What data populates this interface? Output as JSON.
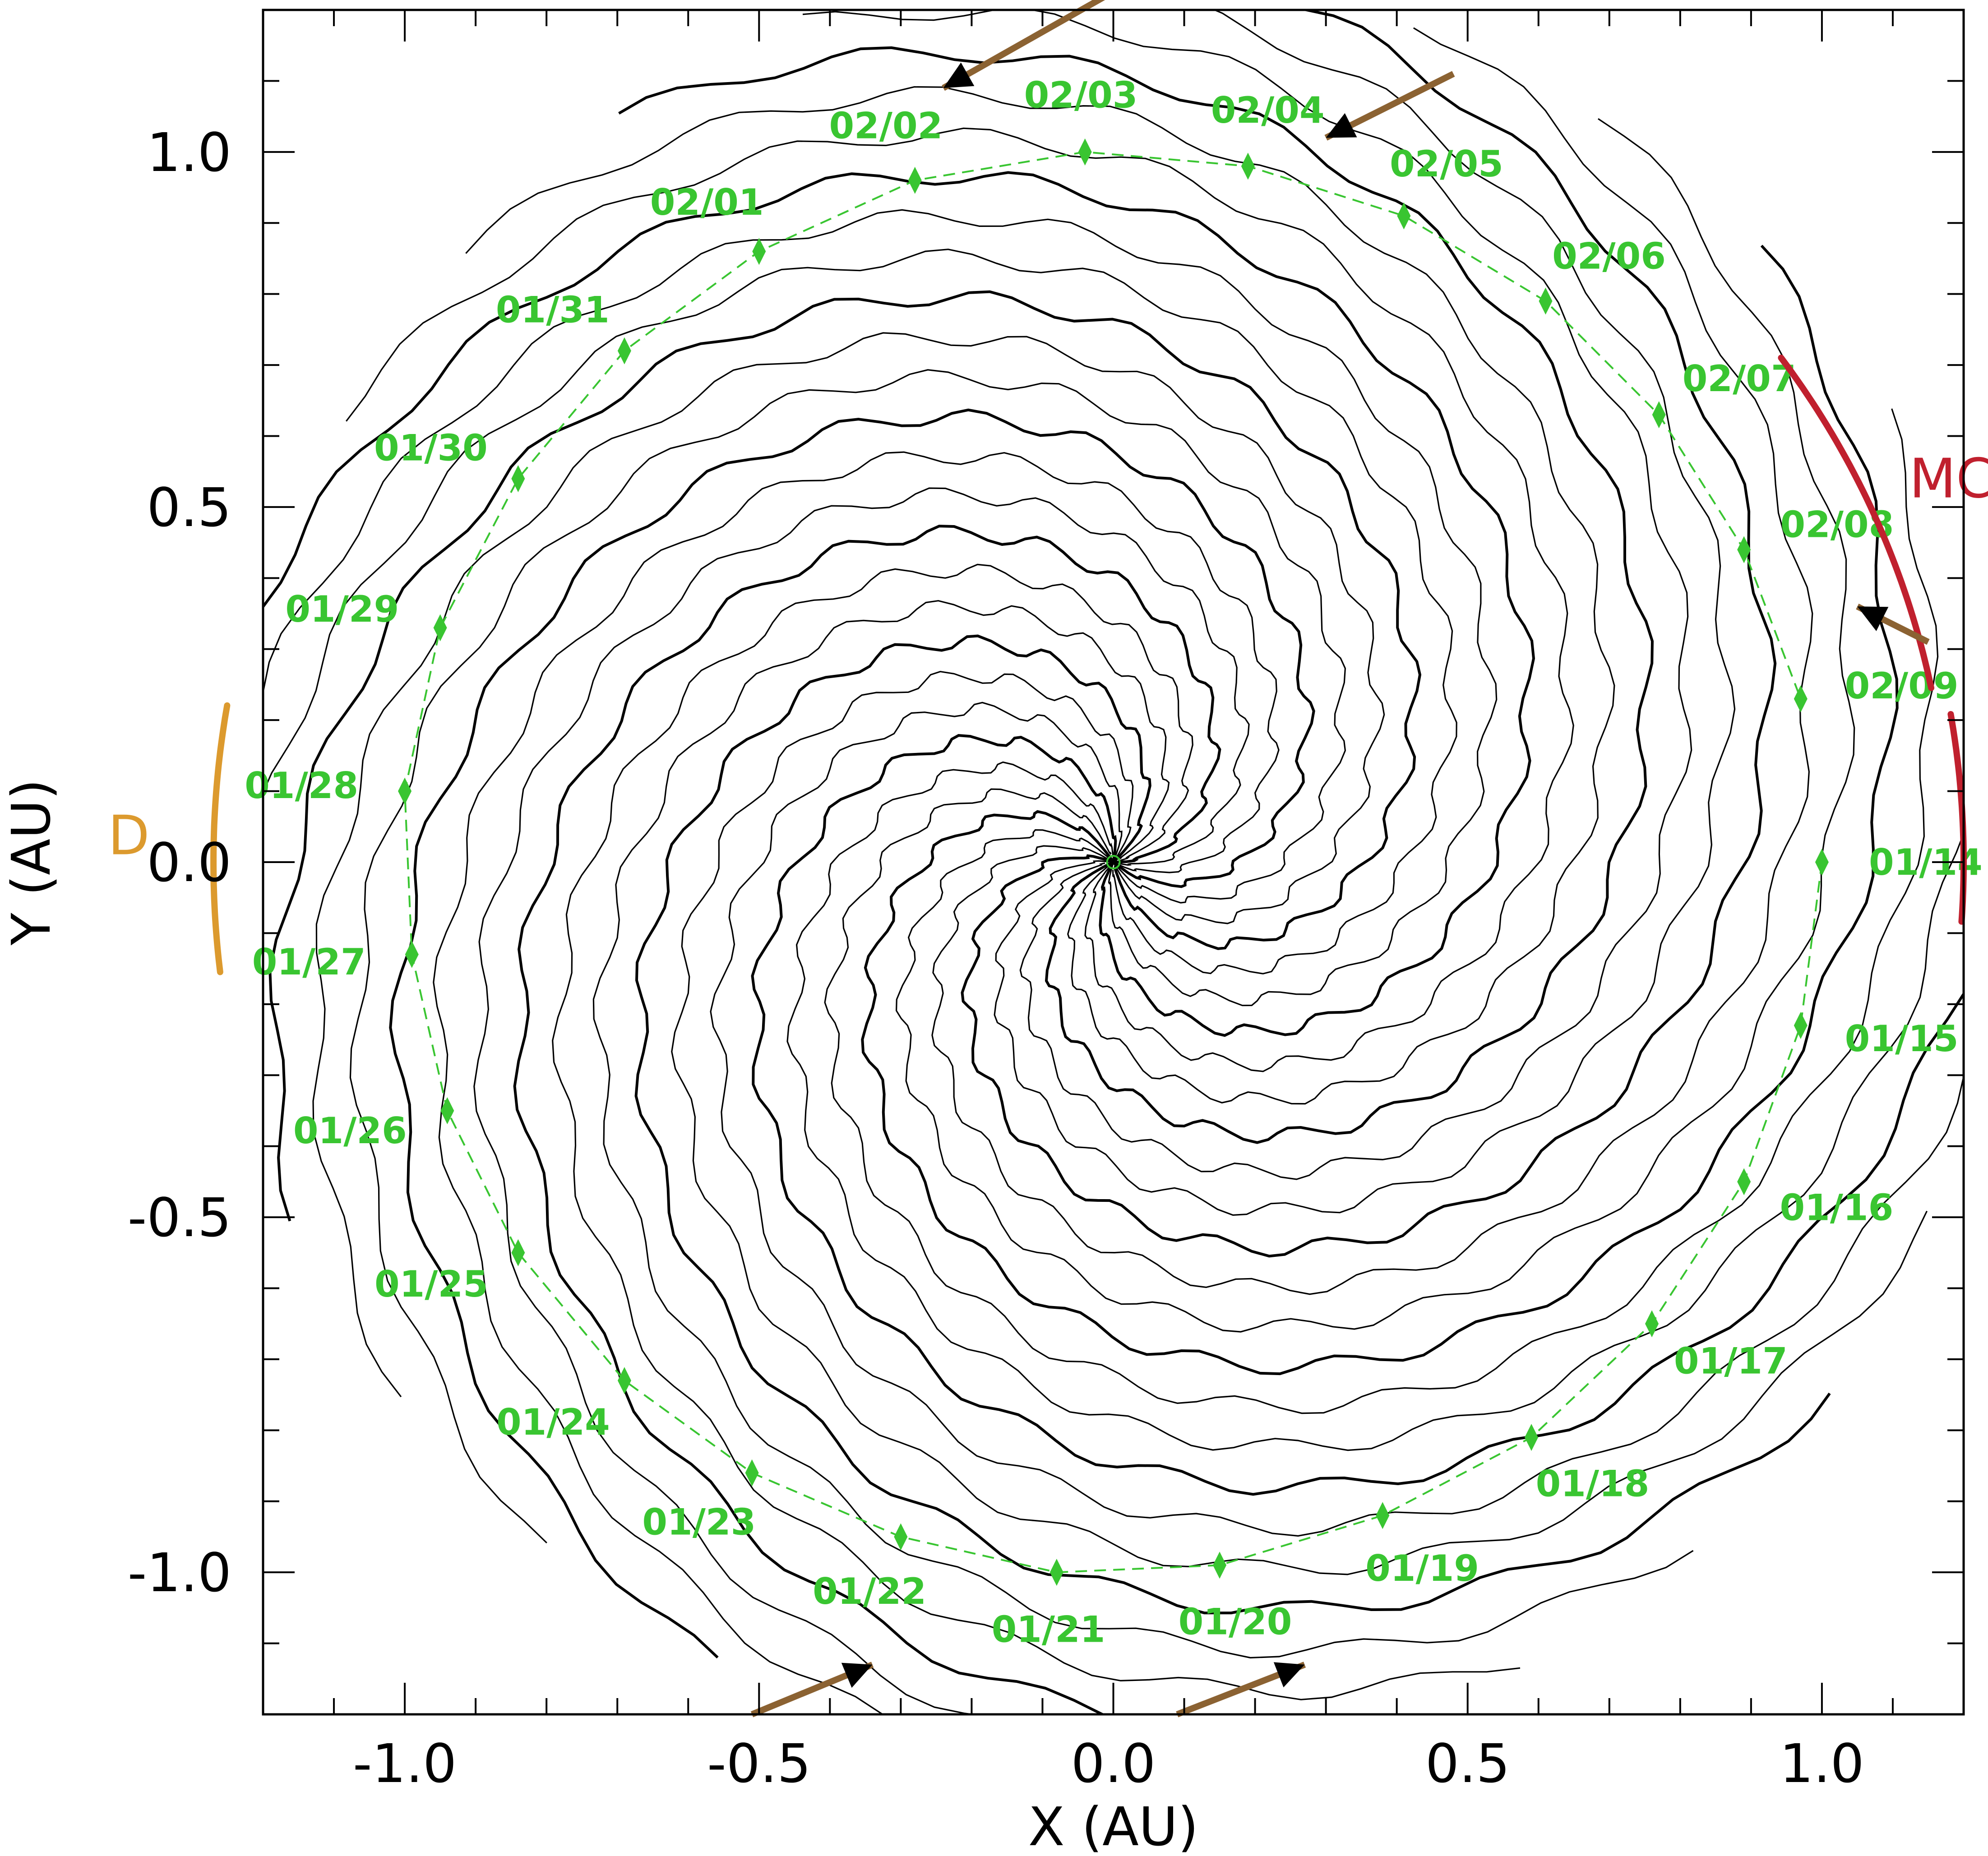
{
  "chart_data": {
    "type": "line",
    "title": "",
    "xlabel": "X (AU)",
    "ylabel": "Y (AU)",
    "xlim": [
      -1.2,
      1.2
    ],
    "ylim": [
      -1.2,
      1.2
    ],
    "x_ticks": [
      -1.0,
      -0.5,
      0.0,
      0.5,
      1.0
    ],
    "y_ticks": [
      -1.0,
      -0.5,
      0.0,
      0.5,
      1.0
    ],
    "x_tick_labels": [
      "-1.0",
      "-0.5",
      "0.0",
      "0.5",
      "1.0"
    ],
    "y_tick_labels": [
      "-1.0",
      "-0.5",
      "0.0",
      "0.5",
      "1.0"
    ],
    "minor_tick_step": 0.1,
    "grid": false,
    "description_free": true,
    "spiral": {
      "arms": 27,
      "winding_turns": 0.75,
      "outer_radius": 1.2,
      "rotation": "clockwise-outward",
      "color": "#000000"
    },
    "trajectory_points": [
      {
        "label": "01/14",
        "x": 1.0,
        "y": 0.0
      },
      {
        "label": "01/15",
        "x": 0.97,
        "y": -0.23
      },
      {
        "label": "01/16",
        "x": 0.89,
        "y": -0.45
      },
      {
        "label": "01/17",
        "x": 0.76,
        "y": -0.65
      },
      {
        "label": "01/18",
        "x": 0.59,
        "y": -0.81
      },
      {
        "label": "01/19",
        "x": 0.38,
        "y": -0.92
      },
      {
        "label": "01/20",
        "x": 0.15,
        "y": -0.99
      },
      {
        "label": "01/21",
        "x": -0.08,
        "y": -1.0
      },
      {
        "label": "01/22",
        "x": -0.3,
        "y": -0.95
      },
      {
        "label": "01/23",
        "x": -0.51,
        "y": -0.86
      },
      {
        "label": "01/24",
        "x": -0.69,
        "y": -0.73
      },
      {
        "label": "01/25",
        "x": -0.84,
        "y": -0.55
      },
      {
        "label": "01/26",
        "x": -0.94,
        "y": -0.35
      },
      {
        "label": "01/27",
        "x": -0.99,
        "y": -0.13
      },
      {
        "label": "01/28",
        "x": -1.0,
        "y": 0.1
      },
      {
        "label": "01/29",
        "x": -0.95,
        "y": 0.33
      },
      {
        "label": "01/30",
        "x": -0.84,
        "y": 0.54
      },
      {
        "label": "01/31",
        "x": -0.69,
        "y": 0.72
      },
      {
        "label": "02/01",
        "x": -0.5,
        "y": 0.86
      },
      {
        "label": "02/02",
        "x": -0.28,
        "y": 0.96
      },
      {
        "label": "02/03",
        "x": -0.04,
        "y": 1.0
      },
      {
        "label": "02/04",
        "x": 0.19,
        "y": 0.98
      },
      {
        "label": "02/05",
        "x": 0.41,
        "y": 0.91
      },
      {
        "label": "02/06",
        "x": 0.61,
        "y": 0.79
      },
      {
        "label": "02/07",
        "x": 0.77,
        "y": 0.63
      },
      {
        "label": "02/08",
        "x": 0.89,
        "y": 0.44
      },
      {
        "label": "02/09",
        "x": 0.97,
        "y": 0.23
      }
    ],
    "trajectory_color": "#39c531",
    "arcs": [
      {
        "label": "MC",
        "color": "#c0202e",
        "r_values": [
          1.18,
          1.18
        ],
        "theta_deg": [
          12,
          37
        ]
      },
      {
        "label": "",
        "color": "#c0202e",
        "r_values": [
          1.2,
          1.2
        ],
        "theta_deg": [
          -4,
          10
        ]
      },
      {
        "label": "D",
        "color": "#dc9a2e",
        "r_values": [
          1.27,
          1.27
        ],
        "theta_deg": [
          170,
          187
        ]
      }
    ],
    "flow_arrows": {
      "color": "#8b6232",
      "items": [
        {
          "from": [
            -0.01,
            1.22
          ],
          "to": [
            -0.24,
            1.09
          ]
        },
        {
          "from": [
            0.48,
            1.11
          ],
          "to": [
            0.3,
            1.02
          ]
        },
        {
          "from": [
            1.15,
            0.31
          ],
          "to": [
            1.05,
            0.36
          ]
        },
        {
          "from": [
            -0.51,
            -1.2
          ],
          "to": [
            -0.34,
            -1.13
          ]
        },
        {
          "from": [
            0.09,
            -1.2
          ],
          "to": [
            0.27,
            -1.13
          ]
        }
      ]
    }
  }
}
